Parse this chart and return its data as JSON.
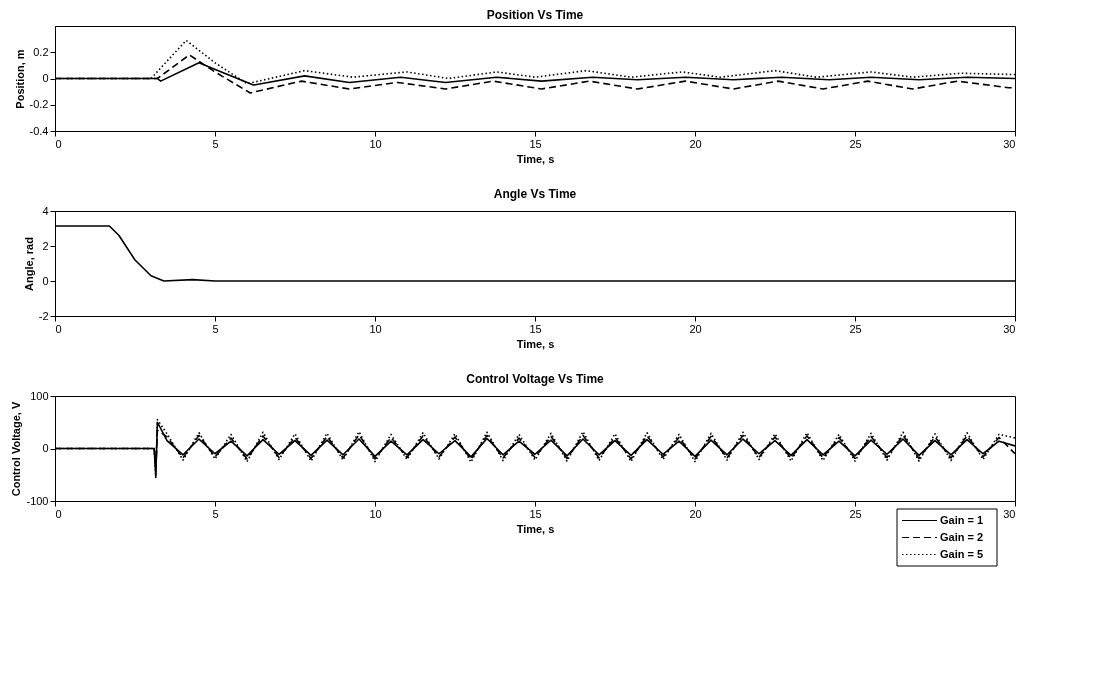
{
  "chart_data": [
    {
      "type": "line",
      "title": "Position Vs Time",
      "xlabel": "Time, s",
      "ylabel": "Position, m",
      "xlim": [
        0,
        30
      ],
      "xticks": [
        0,
        5,
        10,
        15,
        20,
        25,
        30
      ],
      "ylim": [
        -0.4,
        0.4
      ],
      "yticks": [
        -0.4,
        -0.2,
        0,
        0.2
      ],
      "grid": false,
      "series": [
        {
          "color": "#000000",
          "line_style": "solid",
          "x": [
            0,
            3.2,
            3.3,
            4.5,
            5.2,
            6.2,
            7.8,
            9.2,
            10.8,
            12.2,
            13.8,
            15.2,
            16.8,
            18.2,
            19.7,
            21.2,
            22.7,
            24.2,
            25.5,
            27,
            28.5,
            30
          ],
          "values": [
            0,
            0,
            -0.02,
            0.12,
            0.05,
            -0.05,
            0.02,
            -0.03,
            0.01,
            -0.03,
            0.01,
            -0.02,
            0.01,
            -0.01,
            0.01,
            -0.01,
            0.01,
            -0.01,
            0.01,
            -0.01,
            0.01,
            0
          ]
        },
        {
          "color": "#000000",
          "line_style": "dashed",
          "x": [
            0,
            3.2,
            4.2,
            5,
            6.1,
            7.7,
            9.2,
            10.7,
            12.2,
            13.7,
            15.2,
            16.7,
            18.2,
            19.7,
            21.2,
            22.6,
            24,
            25.4,
            26.8,
            28.2,
            29.8,
            30
          ],
          "values": [
            0,
            0,
            0.18,
            0.05,
            -0.11,
            -0.02,
            -0.08,
            -0.03,
            -0.08,
            -0.02,
            -0.08,
            -0.02,
            -0.08,
            -0.02,
            -0.08,
            -0.02,
            -0.08,
            -0.02,
            -0.08,
            -0.02,
            -0.07,
            -0.07
          ]
        },
        {
          "color": "#000000",
          "line_style": "dotted",
          "x": [
            0,
            3,
            4.1,
            5,
            6,
            7.8,
            9.3,
            11,
            12.3,
            13.8,
            15,
            16.6,
            18,
            19.6,
            20.8,
            22.5,
            23.8,
            25.5,
            26.8,
            28.3,
            30
          ],
          "values": [
            0,
            0,
            0.29,
            0.12,
            -0.04,
            0.06,
            0.01,
            0.05,
            0,
            0.05,
            0.01,
            0.06,
            0.01,
            0.05,
            0.01,
            0.06,
            0.01,
            0.05,
            0.01,
            0.04,
            0.03
          ]
        }
      ]
    },
    {
      "type": "line",
      "title": "Angle Vs Time",
      "xlabel": "Time, s",
      "ylabel": "Angle, rad",
      "xlim": [
        0,
        30
      ],
      "xticks": [
        0,
        5,
        10,
        15,
        20,
        25,
        30
      ],
      "ylim": [
        -2,
        4
      ],
      "yticks": [
        -2,
        0,
        2,
        4
      ],
      "grid": false,
      "series": [
        {
          "color": "#000000",
          "line_style": "solid",
          "x": [
            0,
            1.7,
            2,
            2.5,
            3,
            3.4,
            4.3,
            5,
            30
          ],
          "values": [
            3.14,
            3.14,
            2.6,
            1.2,
            0.3,
            0,
            0.08,
            0,
            0
          ]
        }
      ]
    },
    {
      "type": "line",
      "title": "Control Voltage Vs Time",
      "xlabel": "Time, s",
      "ylabel": "Control Voltage, V",
      "xlim": [
        0,
        30
      ],
      "xticks": [
        0,
        5,
        10,
        15,
        20,
        25,
        30
      ],
      "ylim": [
        -100,
        100
      ],
      "yticks": [
        -100,
        0,
        100
      ],
      "grid": false,
      "legend": "bottom right",
      "x": [
        0,
        3.1,
        3.15,
        3.2,
        3.5,
        4,
        4.5,
        5,
        5.5,
        6,
        6.5,
        7,
        7.5,
        8,
        8.5,
        9,
        9.5,
        10,
        10.5,
        11,
        11.5,
        12,
        12.5,
        13,
        13.5,
        14,
        14.5,
        15,
        15.5,
        16,
        16.5,
        17,
        17.5,
        18,
        18.5,
        19,
        19.5,
        20,
        20.5,
        21,
        21.5,
        22,
        22.5,
        23,
        23.5,
        24,
        24.5,
        25,
        25.5,
        26,
        26.5,
        27,
        27.5,
        28,
        28.5,
        29,
        29.5,
        30
      ],
      "series": [
        {
          "name": "Gain = 1",
          "color": "#000000",
          "line_style": "solid",
          "values": [
            0,
            0,
            -55,
            50,
            15,
            -12,
            18,
            -10,
            14,
            -14,
            17,
            -11,
            15,
            -13,
            16,
            -12,
            18,
            -15,
            14,
            -12,
            17,
            -10,
            15,
            -16,
            19,
            -12,
            14,
            -11,
            16,
            -14,
            18,
            -12,
            15,
            -13,
            17,
            -11,
            14,
            -15,
            16,
            -12,
            18,
            -10,
            15,
            -13,
            17,
            -12,
            14,
            -14,
            16,
            -11,
            18,
            -13,
            15,
            -12,
            17,
            -10,
            14,
            5
          ]
        },
        {
          "name": "Gain = 2",
          "color": "#000000",
          "line_style": "dashed",
          "values": [
            0,
            0,
            -40,
            35,
            22,
            -18,
            25,
            -16,
            20,
            -20,
            24,
            -17,
            21,
            -19,
            23,
            -18,
            26,
            -20,
            21,
            -17,
            24,
            -16,
            22,
            -21,
            25,
            -18,
            20,
            -17,
            23,
            -19,
            25,
            -18,
            21,
            -20,
            24,
            -16,
            21,
            -20,
            23,
            -18,
            25,
            -17,
            22,
            -19,
            24,
            -18,
            21,
            -19,
            23,
            -17,
            25,
            -19,
            22,
            -18,
            24,
            -16,
            21,
            -10
          ]
        },
        {
          "name": "Gain = 5",
          "color": "#000000",
          "line_style": "dotted",
          "values": [
            0,
            0,
            -50,
            55,
            28,
            -22,
            30,
            -20,
            27,
            -25,
            31,
            -21,
            28,
            -24,
            29,
            -22,
            32,
            -25,
            27,
            -21,
            30,
            -20,
            28,
            -26,
            31,
            -23,
            27,
            -22,
            29,
            -24,
            32,
            -23,
            28,
            -25,
            30,
            -21,
            27,
            -25,
            29,
            -22,
            31,
            -21,
            28,
            -24,
            30,
            -23,
            27,
            -24,
            29,
            -22,
            31,
            -24,
            28,
            -23,
            30,
            -21,
            27,
            20
          ]
        }
      ]
    }
  ]
}
